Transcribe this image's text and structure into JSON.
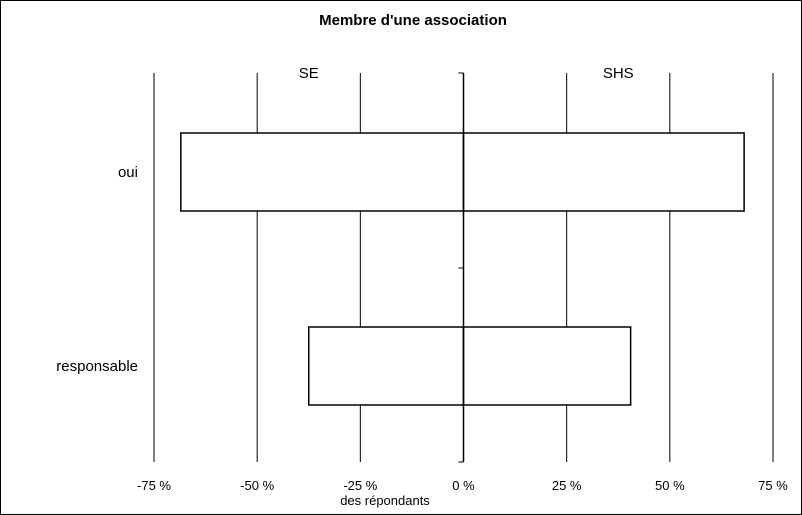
{
  "chart_data": {
    "type": "bar",
    "orientation": "horizontal",
    "title": "Membre d'une association",
    "xlabel": "des répondants",
    "categories": [
      "oui",
      "responsable"
    ],
    "group_labels": [
      "SE",
      "SHS"
    ],
    "series": [
      {
        "name": "SE",
        "values": [
          -68.5,
          -37.5
        ]
      },
      {
        "name": "SHS",
        "values": [
          68,
          40.5
        ]
      }
    ],
    "xlim": [
      -75,
      75
    ],
    "xticks": [
      -75,
      -50,
      -25,
      0,
      25,
      50,
      75
    ],
    "xtick_labels": [
      "-75 %",
      "-50 %",
      "-25 %",
      "0 %",
      "25 %",
      "50 %",
      "75 %"
    ],
    "grid": true,
    "legend": "none"
  }
}
